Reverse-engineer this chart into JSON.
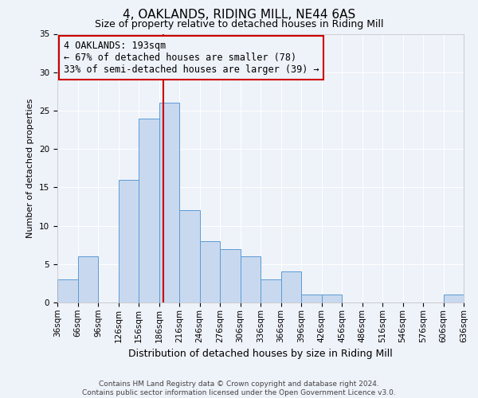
{
  "title": "4, OAKLANDS, RIDING MILL, NE44 6AS",
  "subtitle": "Size of property relative to detached houses in Riding Mill",
  "xlabel": "Distribution of detached houses by size in Riding Mill",
  "ylabel": "Number of detached properties",
  "bin_edges": [
    36,
    66,
    96,
    126,
    156,
    186,
    216,
    246,
    276,
    306,
    336,
    366,
    396,
    426,
    456,
    486,
    516,
    546,
    576,
    606,
    636
  ],
  "bar_heights": [
    3,
    6,
    0,
    16,
    24,
    26,
    12,
    8,
    7,
    6,
    3,
    4,
    1,
    1,
    0,
    0,
    0,
    0,
    0,
    1
  ],
  "bar_color": "#c8d9ef",
  "bar_edgecolor": "#5b9bd5",
  "vline_x": 193,
  "vline_color": "#cc0000",
  "ylim": [
    0,
    35
  ],
  "yticks": [
    0,
    5,
    10,
    15,
    20,
    25,
    30,
    35
  ],
  "annotation_title": "4 OAKLANDS: 193sqm",
  "annotation_line1": "← 67% of detached houses are smaller (78)",
  "annotation_line2": "33% of semi-detached houses are larger (39) →",
  "annotation_box_color": "#cc0000",
  "footer_line1": "Contains HM Land Registry data © Crown copyright and database right 2024.",
  "footer_line2": "Contains public sector information licensed under the Open Government Licence v3.0.",
  "background_color": "#eef2f9",
  "grid_color": "#ffffff",
  "title_fontsize": 11,
  "subtitle_fontsize": 9,
  "xlabel_fontsize": 9,
  "ylabel_fontsize": 8,
  "tick_fontsize": 7.5,
  "annotation_fontsize": 8.5,
  "footer_fontsize": 6.5
}
